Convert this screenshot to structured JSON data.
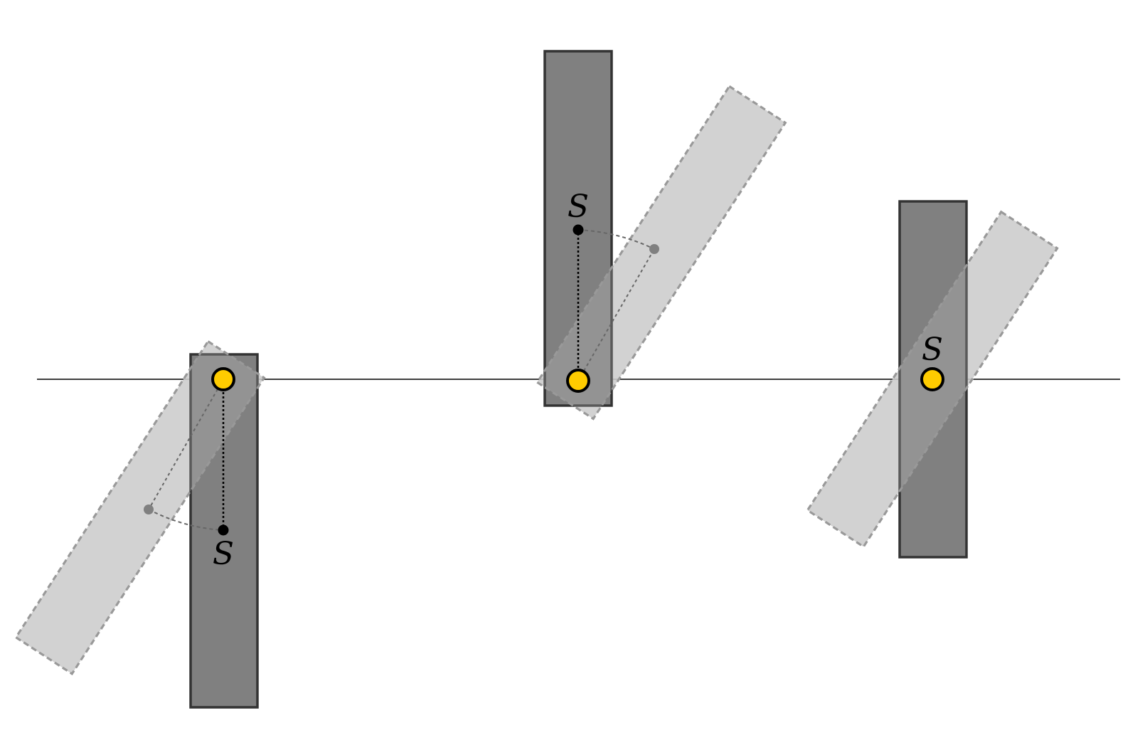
{
  "colors": {
    "background": "#ffffff",
    "rod_fill": "#808080",
    "rod_stroke": "#333333",
    "ghost_fill": "#cccccc",
    "ghost_stroke": "#999999",
    "pivot_fill": "#ffcc00",
    "pivot_stroke": "#000000",
    "line": "#000000",
    "ghost_point": "#808080"
  },
  "panels": [
    {
      "name": "pivot-above-center",
      "label": "S"
    },
    {
      "name": "pivot-below-center",
      "label": "S"
    },
    {
      "name": "pivot-at-center",
      "label": "S"
    }
  ]
}
